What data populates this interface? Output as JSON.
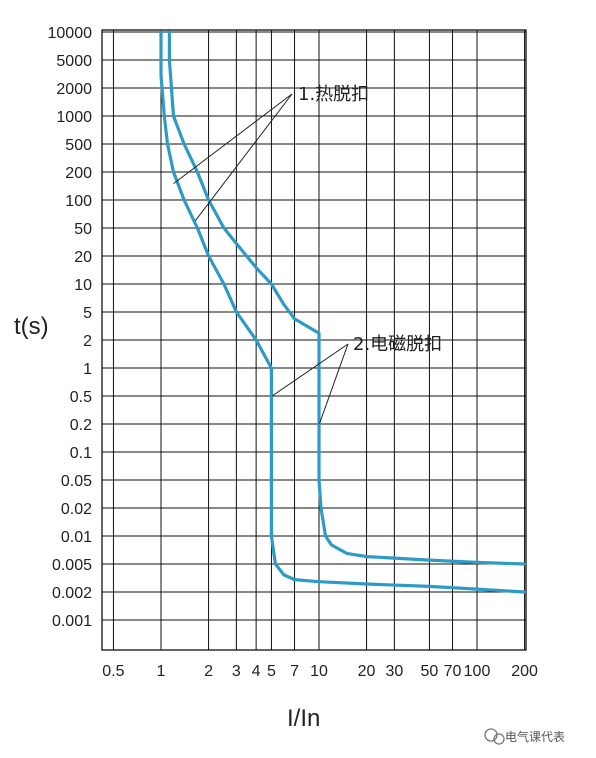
{
  "chart_data": {
    "type": "line",
    "title": "",
    "xlabel": "I/In",
    "ylabel": "t(s)",
    "x_scale": "log",
    "y_scale": "log",
    "x_ticks": [
      "0.5",
      "1",
      "2",
      "3",
      "4",
      "5",
      "7",
      "10",
      "20",
      "30",
      "50",
      "70",
      "100",
      "200"
    ],
    "y_ticks": [
      "10000",
      "5000",
      "2000",
      "1000",
      "500",
      "200",
      "100",
      "50",
      "20",
      "10",
      "5",
      "2",
      "1",
      "0.5",
      "0.2",
      "0.1",
      "0.05",
      "0.02",
      "0.01",
      "0.005",
      "0.002",
      "0.001"
    ],
    "grid": true,
    "annotations": [
      {
        "id": "thermal",
        "text": "1.热脱扣"
      },
      {
        "id": "magnetic",
        "text": "2.电磁脱扣"
      }
    ],
    "series": [
      {
        "color": "#2e9bc6",
        "x": [
          1,
          1,
          1.05,
          1.1,
          1.2,
          1.4,
          1.7,
          2,
          2.5,
          3,
          4,
          5,
          5,
          5,
          5.3,
          6,
          7,
          10,
          20,
          50,
          100,
          200
        ],
        "y": [
          10000,
          3000,
          1000,
          500,
          200,
          100,
          50,
          20,
          10,
          5,
          2,
          1,
          0.2,
          0.01,
          0.005,
          0.0035,
          0.003,
          0.0028,
          0.0026,
          0.0024,
          0.0022,
          0.002
        ]
      },
      {
        "color": "#2e9bc6",
        "x": [
          1.13,
          1.13,
          1.2,
          1.4,
          1.7,
          2,
          2.5,
          3,
          4,
          5,
          6,
          7,
          10,
          10,
          10,
          10.3,
          11,
          12,
          15,
          20,
          50,
          100,
          200
        ],
        "y": [
          10000,
          5000,
          1000,
          500,
          200,
          100,
          50,
          30,
          15,
          10,
          6,
          4,
          2.5,
          0.5,
          0.05,
          0.02,
          0.01,
          0.008,
          0.0065,
          0.006,
          0.0055,
          0.0052,
          0.005
        ]
      }
    ]
  },
  "watermark": {
    "text": "电气课代表"
  }
}
